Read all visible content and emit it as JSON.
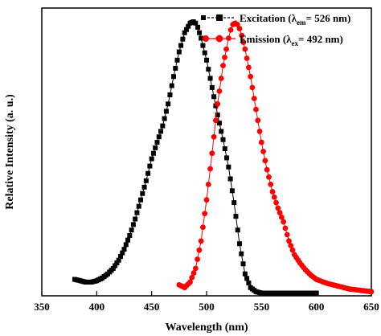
{
  "chart_data": {
    "type": "scatter",
    "xlabel": "Wavelength (nm)",
    "ylabel": "Relative Intensity (a. u.)",
    "xlim": [
      350,
      650
    ],
    "ylim": [
      0,
      1.05
    ],
    "x_ticks": [
      350,
      400,
      450,
      500,
      550,
      600,
      650
    ],
    "y_ticks_labeled": false,
    "grid": false,
    "legend_position": "top-right",
    "series": [
      {
        "name_parts": {
          "prefix": "Excitation (λ",
          "sub": "em",
          "suffix": "= 526 nm)"
        },
        "color": "#000000",
        "marker": "square",
        "x": [
          380,
          385,
          390,
          395,
          400,
          405,
          410,
          415,
          420,
          425,
          430,
          435,
          440,
          445,
          450,
          455,
          460,
          465,
          470,
          475,
          480,
          485,
          488,
          490,
          492,
          495,
          500,
          505,
          510,
          515,
          520,
          525,
          530,
          535,
          540,
          545,
          550,
          560,
          570,
          580,
          590,
          600
        ],
        "y": [
          0.06,
          0.055,
          0.05,
          0.05,
          0.055,
          0.065,
          0.08,
          0.1,
          0.13,
          0.17,
          0.22,
          0.28,
          0.35,
          0.42,
          0.5,
          0.56,
          0.62,
          0.7,
          0.8,
          0.89,
          0.96,
          0.995,
          1.0,
          0.995,
          0.98,
          0.94,
          0.86,
          0.76,
          0.66,
          0.57,
          0.47,
          0.34,
          0.19,
          0.08,
          0.03,
          0.015,
          0.01,
          0.01,
          0.01,
          0.01,
          0.01,
          0.01
        ]
      },
      {
        "name_parts": {
          "prefix": "Emission (λ",
          "sub": "ex",
          "suffix": "= 492 nm)"
        },
        "color": "#ff0000",
        "marker": "circle",
        "x": [
          475,
          480,
          485,
          490,
          495,
          500,
          505,
          510,
          515,
          518,
          520,
          522,
          524,
          526,
          528,
          530,
          532,
          535,
          540,
          545,
          550,
          555,
          560,
          565,
          570,
          575,
          580,
          585,
          590,
          595,
          600,
          610,
          620,
          630,
          640,
          650
        ],
        "y": [
          0.04,
          0.03,
          0.05,
          0.1,
          0.2,
          0.35,
          0.52,
          0.7,
          0.84,
          0.9,
          0.94,
          0.97,
          0.99,
          0.995,
          0.99,
          0.975,
          0.95,
          0.9,
          0.8,
          0.68,
          0.56,
          0.46,
          0.38,
          0.32,
          0.27,
          0.2,
          0.15,
          0.12,
          0.095,
          0.075,
          0.06,
          0.045,
          0.035,
          0.025,
          0.02,
          0.015
        ]
      }
    ]
  }
}
